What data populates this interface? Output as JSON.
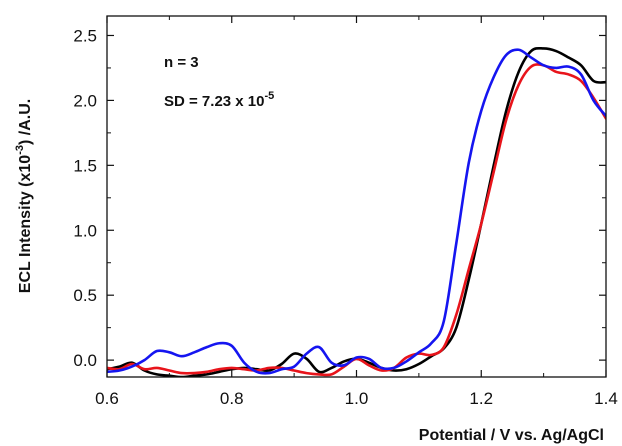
{
  "chart_data": {
    "type": "line",
    "title": "",
    "xlabel": "Potential / V vs. Ag/AgCl",
    "ylabel": {
      "prefix": "ECL Intensity (x10",
      "exponent": "-3",
      "suffix": ") /A.U."
    },
    "xlim": [
      0.6,
      1.4
    ],
    "ylim": [
      -0.13,
      2.65
    ],
    "x_ticks": [
      "0.6",
      "0.8",
      "1.0",
      "1.2",
      "1.4"
    ],
    "y_ticks": [
      "0.0",
      "0.5",
      "1.0",
      "1.5",
      "2.0",
      "2.5"
    ],
    "annotations": {
      "n": "n = 3",
      "sd_prefix": "SD = 7.23 x 10",
      "sd_exponent": "-5"
    },
    "grid": false,
    "legend": "none",
    "series": [
      {
        "color": "#000000",
        "x": [
          0.6,
          0.62,
          0.64,
          0.66,
          0.68,
          0.7,
          0.72,
          0.74,
          0.76,
          0.78,
          0.8,
          0.82,
          0.84,
          0.86,
          0.88,
          0.9,
          0.92,
          0.94,
          0.96,
          0.98,
          1.0,
          1.02,
          1.04,
          1.06,
          1.08,
          1.1,
          1.12,
          1.14,
          1.16,
          1.18,
          1.2,
          1.22,
          1.24,
          1.26,
          1.28,
          1.3,
          1.32,
          1.34,
          1.36,
          1.38,
          1.4
        ],
        "y": [
          -0.07,
          -0.05,
          -0.02,
          -0.08,
          -0.11,
          -0.12,
          -0.13,
          -0.12,
          -0.11,
          -0.09,
          -0.07,
          -0.06,
          -0.07,
          -0.08,
          -0.03,
          0.05,
          0.01,
          -0.09,
          -0.06,
          -0.01,
          0.01,
          -0.02,
          -0.06,
          -0.08,
          -0.07,
          -0.03,
          0.03,
          0.09,
          0.25,
          0.62,
          1.05,
          1.5,
          1.92,
          2.22,
          2.38,
          2.4,
          2.38,
          2.33,
          2.27,
          2.15,
          2.14
        ]
      },
      {
        "color": "#e8141b",
        "x": [
          0.6,
          0.62,
          0.64,
          0.66,
          0.68,
          0.7,
          0.72,
          0.74,
          0.76,
          0.78,
          0.8,
          0.82,
          0.84,
          0.86,
          0.88,
          0.9,
          0.92,
          0.94,
          0.96,
          0.98,
          1.0,
          1.02,
          1.04,
          1.06,
          1.08,
          1.1,
          1.12,
          1.14,
          1.16,
          1.18,
          1.2,
          1.22,
          1.24,
          1.26,
          1.28,
          1.3,
          1.32,
          1.34,
          1.36,
          1.38,
          1.4
        ],
        "y": [
          -0.06,
          -0.07,
          -0.03,
          -0.07,
          -0.06,
          -0.08,
          -0.1,
          -0.1,
          -0.09,
          -0.07,
          -0.06,
          -0.07,
          -0.08,
          -0.06,
          -0.06,
          -0.08,
          -0.1,
          -0.11,
          -0.11,
          -0.05,
          0.01,
          -0.04,
          -0.08,
          -0.06,
          0.02,
          0.05,
          0.04,
          0.1,
          0.35,
          0.7,
          1.05,
          1.45,
          1.85,
          2.12,
          2.26,
          2.27,
          2.22,
          2.2,
          2.15,
          2.02,
          1.86
        ]
      },
      {
        "color": "#1515f0",
        "x": [
          0.6,
          0.62,
          0.64,
          0.66,
          0.68,
          0.7,
          0.72,
          0.74,
          0.76,
          0.78,
          0.8,
          0.82,
          0.84,
          0.86,
          0.88,
          0.9,
          0.92,
          0.94,
          0.96,
          0.98,
          1.0,
          1.02,
          1.04,
          1.06,
          1.08,
          1.1,
          1.12,
          1.14,
          1.16,
          1.18,
          1.2,
          1.22,
          1.24,
          1.26,
          1.28,
          1.3,
          1.32,
          1.34,
          1.36,
          1.38,
          1.4
        ],
        "y": [
          -0.09,
          -0.08,
          -0.05,
          0.0,
          0.07,
          0.06,
          0.03,
          0.06,
          0.1,
          0.13,
          0.11,
          -0.02,
          -0.09,
          -0.1,
          -0.07,
          -0.05,
          0.05,
          0.1,
          -0.02,
          -0.04,
          0.02,
          0.01,
          -0.06,
          -0.06,
          -0.01,
          0.06,
          0.13,
          0.3,
          0.9,
          1.52,
          1.92,
          2.18,
          2.35,
          2.39,
          2.33,
          2.27,
          2.25,
          2.26,
          2.2,
          2.0,
          1.88
        ]
      }
    ]
  }
}
